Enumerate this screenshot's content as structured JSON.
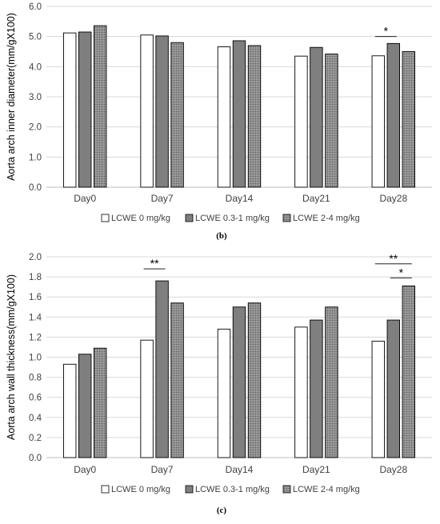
{
  "chart_data": [
    {
      "type": "bar",
      "panel_label": "(b)",
      "ylabel": "Aorta arch inner diameter(mm/gX100)",
      "categories": [
        "Day0",
        "Day7",
        "Day14",
        "Day21",
        "Day28"
      ],
      "ylim": [
        0,
        6.0
      ],
      "yticks": [
        0.0,
        1.0,
        2.0,
        3.0,
        4.0,
        5.0,
        6.0
      ],
      "ytick_labels": [
        "0.0",
        "1.0",
        "2.0",
        "3.0",
        "4.0",
        "5.0",
        "6.0"
      ],
      "legend_position": "bottom",
      "series": [
        {
          "name": "LCWE 0 mg/kg",
          "values": [
            5.12,
            5.05,
            4.66,
            4.35,
            4.36
          ],
          "color": "#ffffff",
          "pattern": "none"
        },
        {
          "name": "LCWE 0.3-1 mg/kg",
          "values": [
            5.15,
            5.02,
            4.86,
            4.64,
            4.77
          ],
          "color": "#7f7f7f",
          "pattern": "none"
        },
        {
          "name": "LCWE 2-4 mg/kg",
          "values": [
            5.36,
            4.8,
            4.7,
            4.42,
            4.5
          ],
          "color": "#8c8c8c",
          "pattern": "dots"
        }
      ],
      "annotations": [
        {
          "text": "*",
          "category": "Day28",
          "from_series": 0,
          "to_series": 1,
          "y": 5.0
        }
      ]
    },
    {
      "type": "bar",
      "panel_label": "(c)",
      "ylabel": "Aorta arch wall thickness(mm/gX100)",
      "categories": [
        "Day0",
        "Day7",
        "Day14",
        "Day21",
        "Day28"
      ],
      "ylim": [
        0,
        2.0
      ],
      "yticks": [
        0.0,
        0.2,
        0.4,
        0.6,
        0.8,
        1.0,
        1.2,
        1.4,
        1.6,
        1.8,
        2.0
      ],
      "ytick_labels": [
        "0.0",
        "0.2",
        "0.4",
        "0.6",
        "0.8",
        "1.0",
        "1.2",
        "1.4",
        "1.6",
        "1.8",
        "2.0"
      ],
      "legend_position": "bottom",
      "series": [
        {
          "name": "LCWE 0 mg/kg",
          "values": [
            0.93,
            1.17,
            1.28,
            1.3,
            1.16
          ],
          "color": "#ffffff",
          "pattern": "none"
        },
        {
          "name": "LCWE 0.3-1 mg/kg",
          "values": [
            1.03,
            1.76,
            1.5,
            1.37,
            1.37
          ],
          "color": "#7f7f7f",
          "pattern": "none"
        },
        {
          "name": "LCWE 2-4 mg/kg",
          "values": [
            1.09,
            1.54,
            1.54,
            1.5,
            1.71
          ],
          "color": "#8c8c8c",
          "pattern": "dots"
        }
      ],
      "annotations": [
        {
          "text": "**",
          "category": "Day7",
          "from_series": 0,
          "to_series": 1,
          "y": 1.88
        },
        {
          "text": "**",
          "category": "Day28",
          "from_series": 0,
          "to_series": 2,
          "y": 1.93
        },
        {
          "text": "*",
          "category": "Day28",
          "from_series": 1,
          "to_series": 2,
          "y": 1.79
        }
      ]
    }
  ]
}
